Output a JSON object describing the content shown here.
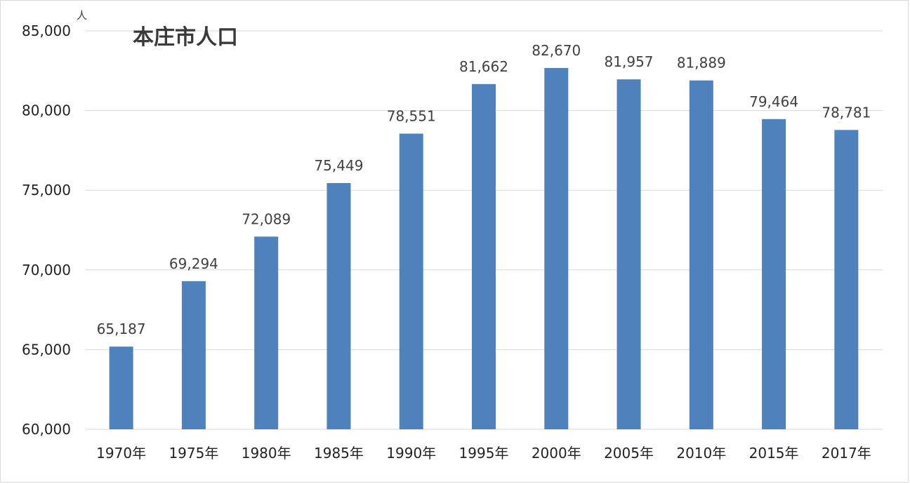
{
  "chart_data": {
    "type": "bar",
    "title": "本庄市人口",
    "unit_label": "人",
    "xlabel": "",
    "ylabel": "",
    "categories": [
      "1970年",
      "1975年",
      "1980年",
      "1985年",
      "1990年",
      "1995年",
      "2000年",
      "2005年",
      "2010年",
      "2015年",
      "2017年"
    ],
    "values": [
      65187,
      69294,
      72089,
      75449,
      78551,
      81662,
      82670,
      81957,
      81889,
      79464,
      78781
    ],
    "value_labels": [
      "65,187",
      "69,294",
      "72,089",
      "75,449",
      "78,551",
      "81,662",
      "82,670",
      "81,957",
      "81,889",
      "79,464",
      "78,781"
    ],
    "yticks": [
      60000,
      65000,
      70000,
      75000,
      80000,
      85000
    ],
    "ytick_labels": [
      "60,000",
      "65,000",
      "70,000",
      "75,000",
      "80,000",
      "85,000"
    ],
    "ylim": [
      60000,
      85000
    ],
    "grid": true,
    "legend": "none",
    "colors": {
      "bar": "#4f81bd",
      "grid": "#d9d9d9"
    }
  }
}
